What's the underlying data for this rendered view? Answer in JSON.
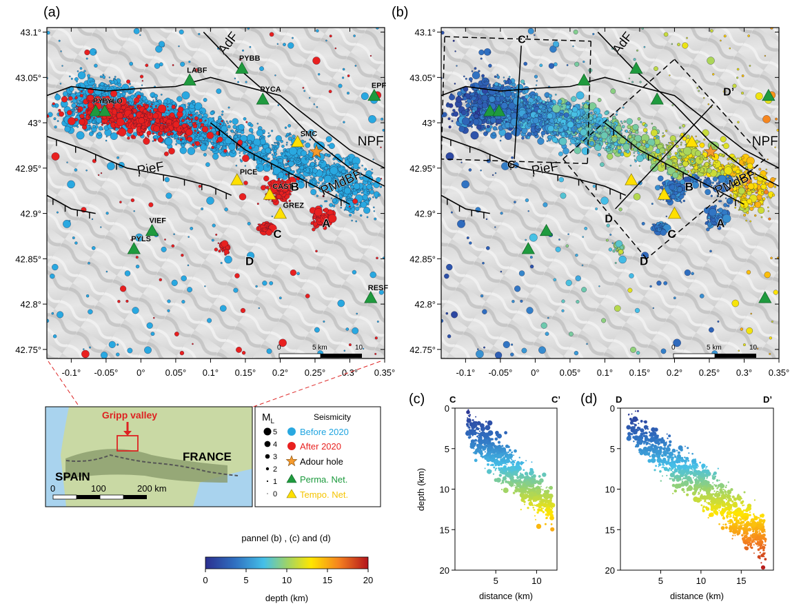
{
  "panel_labels": {
    "a": "(a)",
    "b": "(b)",
    "c": "(c)",
    "d": "(d)"
  },
  "map_axes": {
    "lon_ticks": [
      "-0.1°",
      "-0.05°",
      "0°",
      "0.05°",
      "0.1°",
      "0.15°",
      "0.2°",
      "0.25°",
      "0.3°",
      "0.35°"
    ],
    "lat_ticks": [
      "43.1°",
      "43.05°",
      "43°",
      "42.95°",
      "42.9°",
      "42.85°",
      "42.8°",
      "42.75°"
    ],
    "lon_range": [
      -0.135,
      0.35
    ],
    "lat_range": [
      42.74,
      43.105
    ]
  },
  "faults": {
    "adf": "AdF",
    "npf": "NPF",
    "pief": "PieF",
    "pmdbf": "PMdBF"
  },
  "clusters": {
    "a": "A",
    "b": "B",
    "c": "C",
    "d": "D"
  },
  "stations": {
    "perma": [
      {
        "name": "PYBB",
        "lon": 0.145,
        "lat": 43.06
      },
      {
        "name": "LABF",
        "lon": 0.07,
        "lat": 43.047
      },
      {
        "name": "PYCA",
        "lon": 0.175,
        "lat": 43.026
      },
      {
        "name": "PYSA",
        "lon": -0.065,
        "lat": 43.013
      },
      {
        "name": "PYLO",
        "lon": -0.052,
        "lat": 43.013
      },
      {
        "name": "EPF",
        "lon": 0.335,
        "lat": 43.03
      },
      {
        "name": "VIEF",
        "lon": 0.016,
        "lat": 42.881
      },
      {
        "name": "PYLS",
        "lon": -0.01,
        "lat": 42.861
      },
      {
        "name": "RESF",
        "lon": 0.33,
        "lat": 42.807
      }
    ],
    "tempo": [
      {
        "name": "SMC",
        "lon": 0.225,
        "lat": 42.979
      },
      {
        "name": "PICE",
        "lon": 0.138,
        "lat": 42.937
      },
      {
        "name": "CAST",
        "lon": 0.185,
        "lat": 42.921
      },
      {
        "name": "GREZ",
        "lon": 0.2,
        "lat": 42.9
      }
    ]
  },
  "adour_hole": {
    "lon": 0.252,
    "lat": 42.968
  },
  "scalebar": {
    "zero": "0",
    "mid": "5 km",
    "end": "10"
  },
  "profiles": {
    "c_start": "C",
    "c_end": "C’",
    "d_start": "D",
    "d_end": "D’"
  },
  "inset": {
    "title": "Gripp valley",
    "france": "FRANCE",
    "spain": "SPAIN",
    "scale_zero": "0",
    "scale_mid": "100",
    "scale_end": "200 km"
  },
  "legend": {
    "ml_title": "M",
    "ml_sub": "L",
    "ml_values": [
      "5",
      "4",
      "3",
      "2",
      "1",
      "0"
    ],
    "seismicity_title": "Seismicity",
    "before_label": "Before 2020",
    "after_label": "After    2020",
    "adour_label": "Adour hole",
    "perma_label": "Perma. Net.",
    "tempo_label": "Tempo. Net."
  },
  "colors": {
    "before": "#29a8e0",
    "after": "#e8201f",
    "perma": "#1f9a3e",
    "tempo": "#ffe000",
    "adour": "#f59a2c",
    "before_text": "#1ea4e0",
    "after_text": "#e8201f",
    "perma_text": "#1b9a3c",
    "tempo_text": "#f5c400"
  },
  "colorbar": {
    "title": "pannel (b) , (c) and (d)",
    "label": "depth (km)",
    "ticks": [
      "0",
      "5",
      "10",
      "15",
      "20"
    ],
    "range": [
      0,
      20
    ]
  },
  "chart_data": [
    {
      "type": "scatter",
      "panel": "(c)",
      "xlabel": "distance (km)",
      "ylabel": "depth (km)",
      "xlim": [
        0,
        12.5
      ],
      "ylim": [
        0,
        20
      ],
      "x_ticks": [
        "5",
        "10"
      ],
      "y_ticks": [
        "0",
        "5",
        "10",
        "15",
        "20"
      ],
      "profile": [
        "C",
        "C’"
      ]
    },
    {
      "type": "scatter",
      "panel": "(d)",
      "xlabel": "distance (km)",
      "ylabel": "",
      "xlim": [
        0,
        19
      ],
      "ylim": [
        0,
        20
      ],
      "x_ticks": [
        "5",
        "10",
        "15"
      ],
      "y_ticks": [
        "0",
        "5",
        "10",
        "15",
        "20"
      ],
      "profile": [
        "D",
        "D’"
      ]
    }
  ]
}
